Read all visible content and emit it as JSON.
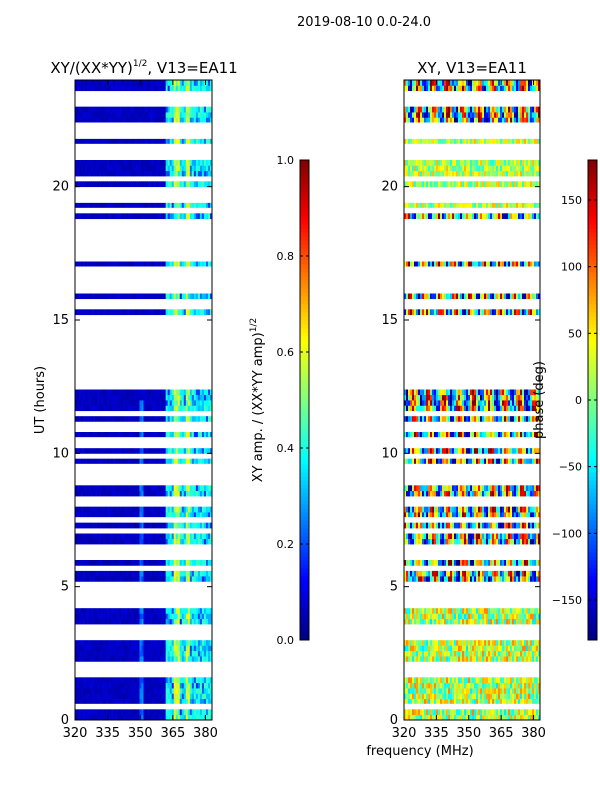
{
  "figure": {
    "suptitle": "2019-08-10 0.0-24.0",
    "xlabel": "frequency (MHz)"
  },
  "chart_data": [
    {
      "type": "heatmap",
      "title_main": "XY/(XX*YY)",
      "title_sup": "1/2",
      "title_rest": ", V13=EA11",
      "xlabel": "frequency (MHz)",
      "ylabel": "UT (hours)",
      "xlim": [
        320,
        383
      ],
      "ylim": [
        0,
        24
      ],
      "x_ticks": [
        320,
        335,
        350,
        365,
        380
      ],
      "y_ticks": [
        0,
        5,
        10,
        15,
        20
      ],
      "colorbar": {
        "label_main": "XY amp. / (XX*YY amp)",
        "label_sup": "1/2",
        "range": [
          0.0,
          1.0
        ],
        "ticks": [
          "0.0",
          "0.2",
          "0.4",
          "0.6",
          "0.8",
          "1.0"
        ],
        "tick_values": [
          0.0,
          0.2,
          0.4,
          0.6,
          0.8,
          1.0
        ],
        "colormap": "jet"
      },
      "description_value": "normalized XY amplitude; low (~0.05) below 362 MHz, ~0.3-0.6 above 362 MHz with bright columns near 367 and 372 MHz"
    },
    {
      "type": "heatmap",
      "title_main": "XY, V13=EA11",
      "xlabel": "frequency (MHz)",
      "ylabel": "",
      "xlim": [
        320,
        383
      ],
      "ylim": [
        0,
        24
      ],
      "x_ticks": [
        320,
        335,
        350,
        365,
        380
      ],
      "y_ticks": [
        0,
        5,
        10,
        15,
        20
      ],
      "colorbar": {
        "label_main": "phase (deg)",
        "range": [
          -180,
          180
        ],
        "ticks": [
          "−150",
          "−100",
          "−50",
          "0",
          "50",
          "100",
          "150"
        ],
        "tick_values": [
          -150,
          -100,
          -50,
          0,
          50,
          100,
          150
        ],
        "colormap": "jet"
      }
    }
  ],
  "flagged_hours": [
    0.55,
    1.75,
    1.85,
    2.05,
    3.05,
    3.35,
    3.5,
    4.25,
    4.35,
    4.6,
    5.0,
    5.65,
    6.2,
    6.5,
    7.05,
    7.55,
    8.15,
    8.25,
    8.9,
    9.1,
    9.35,
    9.55,
    9.9,
    10.25,
    10.55,
    11.0,
    11.45,
    12.45,
    12.75,
    12.9,
    13.15,
    13.35,
    13.6,
    13.9,
    14.2,
    14.55,
    14.8,
    15.05,
    15.5,
    15.7,
    16.05,
    16.4,
    16.75,
    16.95,
    17.25,
    17.6,
    17.85,
    18.05,
    18.4,
    18.7,
    19.15,
    19.45,
    19.75,
    19.85,
    20.3,
    21.2,
    21.55,
    21.85,
    22.05,
    22.35,
    23.1,
    23.3,
    23.5
  ],
  "colors": {
    "background": "#ffffff",
    "flag": "#ffffff",
    "low_amp": "#00008f"
  }
}
